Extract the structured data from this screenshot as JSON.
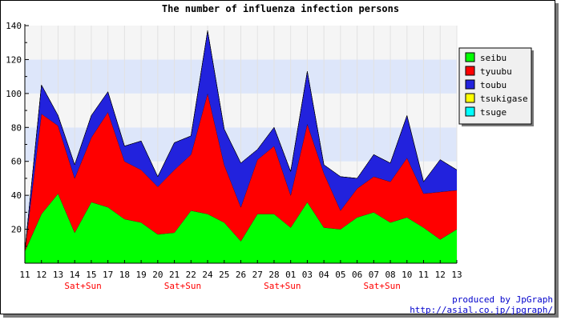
{
  "chart_data": {
    "type": "area",
    "stacked": true,
    "title": "The number of influenza infection persons",
    "ylim": [
      0,
      140
    ],
    "yticks": [
      20,
      40,
      60,
      80,
      100,
      120,
      140
    ],
    "categories": [
      "11",
      "12",
      "13",
      "14",
      "15",
      "17",
      "18",
      "19",
      "20",
      "21",
      "22",
      "24",
      "25",
      "26",
      "27",
      "28",
      "01",
      "03",
      "04",
      "05",
      "06",
      "07",
      "08",
      "10",
      "11",
      "12",
      "13"
    ],
    "weekend_labels": [
      {
        "after_index": 3,
        "text": "Sat+Sun"
      },
      {
        "after_index": 9,
        "text": "Sat+Sun"
      },
      {
        "after_index": 15,
        "text": "Sat+Sun"
      },
      {
        "after_index": 21,
        "text": "Sat+Sun"
      }
    ],
    "series": [
      {
        "name": "seibu",
        "color": "#00ff00",
        "values": [
          7,
          29,
          41,
          18,
          36,
          33,
          26,
          24,
          17,
          18,
          31,
          29,
          24,
          13,
          29,
          29,
          21,
          36,
          21,
          20,
          27,
          30,
          24,
          27,
          21,
          14,
          20
        ]
      },
      {
        "name": "tyuubu",
        "color": "#ff0000",
        "values": [
          0,
          59,
          40,
          32,
          38,
          56,
          34,
          31,
          28,
          37,
          33,
          71,
          34,
          20,
          32,
          40,
          19,
          46,
          32,
          11,
          17,
          21,
          24,
          35,
          20,
          28,
          23
        ]
      },
      {
        "name": "toubu",
        "color": "#2222dd",
        "values": [
          0,
          17,
          6,
          8,
          13,
          12,
          9,
          17,
          6,
          16,
          11,
          37,
          21,
          26,
          6,
          11,
          14,
          31,
          5,
          20,
          6,
          13,
          11,
          25,
          7,
          19,
          12
        ]
      },
      {
        "name": "tsukigase",
        "color": "#ffff00",
        "values": [
          0,
          0,
          0,
          0,
          0,
          0,
          0,
          0,
          0,
          0,
          0,
          0,
          0,
          0,
          0,
          0,
          0,
          0,
          0,
          0,
          0,
          0,
          0,
          0,
          0,
          0,
          0
        ]
      },
      {
        "name": "tsuge",
        "color": "#00ffff",
        "values": [
          0,
          0,
          0,
          0,
          0,
          0,
          0,
          0,
          0,
          0,
          0,
          0,
          0,
          0,
          0,
          0,
          0,
          0,
          0,
          0,
          0,
          0,
          0,
          0,
          0,
          0,
          0
        ]
      }
    ],
    "grid": true,
    "legend": "top-right",
    "band_colors": [
      "#f5f5f5",
      "#dde6fa"
    ]
  },
  "credit": {
    "line1": "produced by JpGraph",
    "line2": "http://asial.co.jp/jpgraph/"
  }
}
